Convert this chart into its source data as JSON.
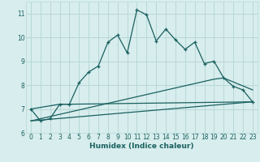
{
  "xlabel": "Humidex (Indice chaleur)",
  "bg_color": "#d8eded",
  "grid_color": "#b8d8d8",
  "line_color": "#1a6060",
  "xlim": [
    -0.5,
    23.5
  ],
  "ylim": [
    6,
    11.5
  ],
  "yticks": [
    6,
    7,
    8,
    9,
    10,
    11
  ],
  "xticks": [
    0,
    1,
    2,
    3,
    4,
    5,
    6,
    7,
    8,
    9,
    10,
    11,
    12,
    13,
    14,
    15,
    16,
    17,
    18,
    19,
    20,
    21,
    22,
    23
  ],
  "line1_x": [
    0,
    1,
    2,
    3,
    4,
    5,
    6,
    7,
    8,
    9,
    10,
    11,
    12,
    13,
    14,
    15,
    16,
    17,
    18,
    19,
    20,
    21,
    22,
    23
  ],
  "line1_y": [
    7.0,
    6.5,
    6.6,
    7.2,
    7.2,
    8.1,
    8.55,
    8.8,
    9.8,
    10.1,
    9.35,
    11.15,
    10.95,
    9.85,
    10.35,
    9.9,
    9.5,
    9.8,
    8.9,
    9.0,
    8.3,
    7.95,
    7.8,
    7.3
  ],
  "line2_x": [
    0,
    3,
    4,
    23
  ],
  "line2_y": [
    7.0,
    7.2,
    7.2,
    7.3
  ],
  "line3_x": [
    0,
    19,
    20,
    23
  ],
  "line3_y": [
    6.5,
    8.25,
    8.3,
    7.8
  ],
  "line4_x": [
    0,
    23
  ],
  "line4_y": [
    6.5,
    7.3
  ]
}
